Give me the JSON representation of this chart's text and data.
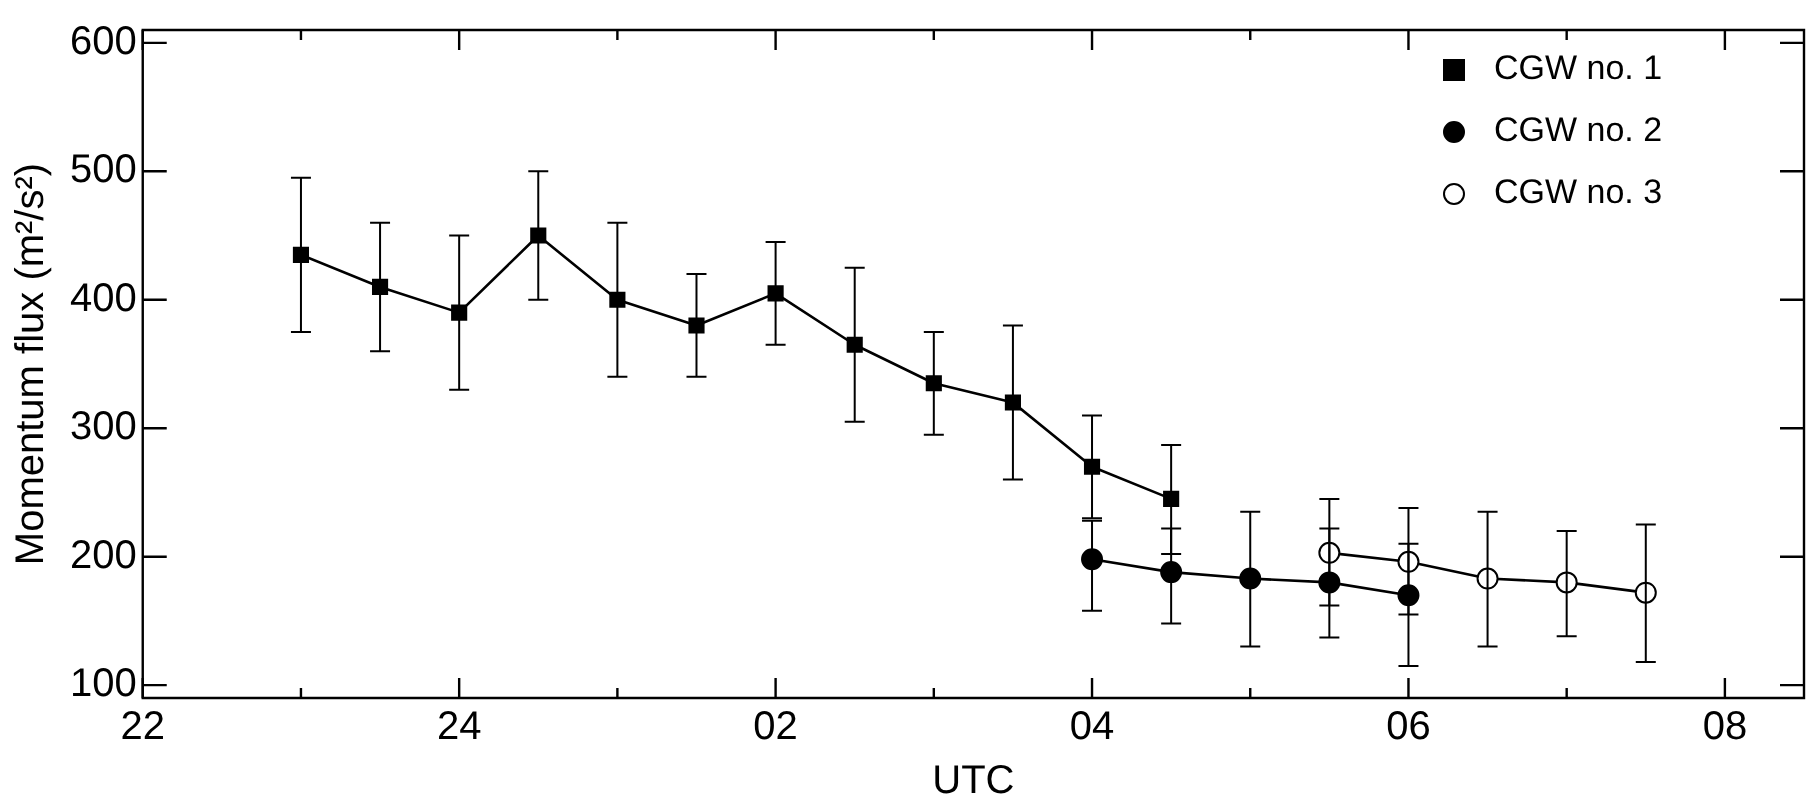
{
  "chart_data": {
    "type": "line",
    "xlabel": "UTC",
    "ylabel": "Momentum flux (m²/s²)",
    "categories": [
      "22",
      null,
      null,
      null,
      "24",
      null,
      null,
      null,
      "02",
      null,
      null,
      null,
      "04",
      null,
      null,
      null,
      "06",
      null,
      null,
      null,
      "08",
      null
    ],
    "ylim": [
      90,
      610
    ],
    "yticks": [
      100,
      200,
      300,
      400,
      500,
      600
    ],
    "grid": false,
    "legend": "top right",
    "line_style": "solid",
    "series": [
      {
        "name": "CGW no. 1",
        "color": "#000000",
        "marker": "square",
        "values": [
          null,
          null,
          435,
          410,
          390,
          450,
          400,
          380,
          405,
          365,
          335,
          320,
          270,
          245,
          null,
          null,
          null,
          null,
          null,
          null,
          null,
          null
        ],
        "errors": [
          null,
          null,
          [
            375,
            495
          ],
          [
            360,
            460
          ],
          [
            330,
            450
          ],
          [
            400,
            500
          ],
          [
            340,
            460
          ],
          [
            340,
            420
          ],
          [
            365,
            445
          ],
          [
            305,
            425
          ],
          [
            295,
            375
          ],
          [
            260,
            380
          ],
          [
            230,
            310
          ],
          [
            202,
            287
          ],
          null,
          null,
          null,
          null,
          null,
          null,
          null,
          null
        ]
      },
      {
        "name": "CGW no. 2",
        "color": "#000000",
        "marker": "circle",
        "values": [
          null,
          null,
          null,
          null,
          null,
          null,
          null,
          null,
          null,
          null,
          null,
          null,
          198,
          188,
          183,
          180,
          170,
          null,
          null,
          null,
          null,
          null
        ],
        "errors": [
          null,
          null,
          null,
          null,
          null,
          null,
          null,
          null,
          null,
          null,
          null,
          null,
          [
            158,
            228
          ],
          [
            148,
            222
          ],
          [
            130,
            235
          ],
          [
            137,
            222
          ],
          [
            115,
            210
          ],
          null,
          null,
          null,
          null,
          null
        ]
      },
      {
        "name": "CGW no. 3",
        "color": "#000000",
        "marker": "open circle",
        "values": [
          null,
          null,
          null,
          null,
          null,
          null,
          null,
          null,
          null,
          null,
          null,
          null,
          null,
          null,
          null,
          203,
          196,
          183,
          180,
          172,
          null,
          null
        ],
        "errors": [
          null,
          null,
          null,
          null,
          null,
          null,
          null,
          null,
          null,
          null,
          null,
          null,
          null,
          null,
          null,
          [
            162,
            245
          ],
          [
            155,
            238
          ],
          [
            130,
            235
          ],
          [
            138,
            220
          ],
          [
            118,
            225
          ],
          null,
          null
        ]
      }
    ]
  }
}
